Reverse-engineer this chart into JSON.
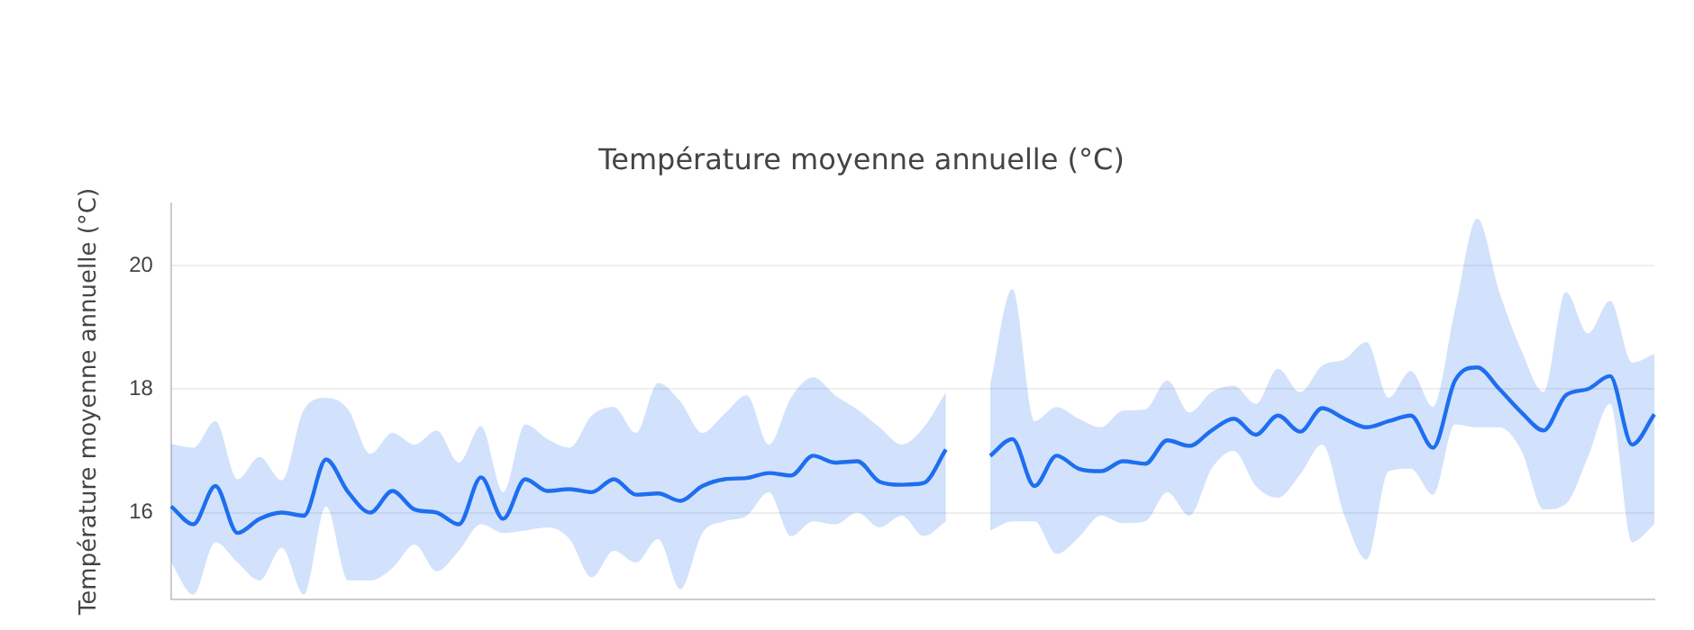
{
  "chart_data": {
    "type": "line",
    "title": "Température moyenne annuelle (°C)",
    "ylabel": "Température moyenne annuelle (°C)",
    "categories": [
      null,
      null,
      null,
      null,
      null,
      null,
      null,
      null,
      null,
      null,
      null,
      null,
      null,
      null,
      null,
      null,
      null,
      null,
      null,
      null,
      null,
      null,
      null,
      null,
      null,
      null,
      null,
      null,
      null,
      null,
      null,
      null,
      null,
      null,
      null,
      null,
      null,
      null,
      null,
      null,
      null,
      null,
      null,
      null,
      null,
      null,
      null,
      null,
      null,
      null,
      null,
      null,
      null,
      null,
      null,
      null,
      null,
      null,
      null,
      null,
      null,
      null,
      null,
      null,
      null,
      null,
      null,
      null
    ],
    "series": [
      {
        "color": "#1f6ff0",
        "values": [
          16.1,
          15.81,
          16.43,
          15.67,
          15.9,
          16.0,
          15.95,
          16.86,
          16.33,
          16.0,
          16.35,
          16.05,
          16.0,
          15.81,
          16.57,
          15.9,
          16.54,
          16.35,
          16.38,
          16.33,
          16.54,
          16.29,
          16.31,
          16.19,
          16.43,
          16.54,
          16.56,
          16.64,
          16.6,
          16.92,
          16.81,
          16.83,
          16.5,
          16.45,
          16.48,
          17.02,
          null,
          null,
          null,
          null,
          null,
          null,
          null,
          null,
          null,
          null,
          null,
          null,
          null,
          null,
          null,
          null,
          null,
          null,
          null,
          null,
          null,
          null,
          null,
          null,
          null,
          null,
          null,
          null,
          null,
          null,
          null,
          null
        ],
        "upper": [
          17.11,
          17.05,
          17.48,
          16.54,
          16.9,
          16.52,
          17.67,
          17.86,
          17.67,
          16.95,
          17.29,
          17.1,
          17.33,
          16.81,
          17.4,
          16.33,
          17.43,
          17.19,
          17.05,
          17.57,
          17.71,
          17.29,
          18.1,
          17.8,
          17.29,
          17.6,
          17.9,
          17.1,
          17.86,
          18.19,
          17.9,
          17.67,
          17.38,
          17.1,
          17.38,
          17.95,
          null,
          null,
          null,
          null,
          null,
          null,
          null,
          null,
          null,
          null,
          null,
          null,
          null,
          null,
          null,
          null,
          null,
          null,
          null,
          null,
          null,
          null,
          null,
          null,
          null,
          null,
          null,
          null,
          null,
          null,
          null,
          null
        ],
        "lower": [
          15.19,
          14.67,
          15.52,
          15.19,
          14.9,
          15.43,
          14.67,
          16.1,
          14.9,
          14.9,
          15.1,
          15.48,
          15.05,
          15.38,
          15.81,
          15.67,
          15.71,
          15.76,
          15.57,
          14.95,
          15.38,
          15.19,
          15.57,
          14.76,
          15.67,
          15.86,
          15.95,
          16.33,
          15.62,
          15.86,
          15.81,
          16.0,
          15.76,
          15.95,
          15.62,
          15.86,
          null,
          null,
          null,
          null,
          null,
          null,
          null,
          null,
          null,
          null,
          null,
          null,
          null,
          null,
          null,
          null,
          null,
          null,
          null,
          null,
          null,
          null,
          null,
          null,
          null,
          null,
          null,
          null,
          null,
          null,
          null,
          null
        ]
      },
      {
        "color": "#1f6ff0",
        "values": [
          null,
          null,
          null,
          null,
          null,
          null,
          null,
          null,
          null,
          null,
          null,
          null,
          null,
          null,
          null,
          null,
          null,
          null,
          null,
          null,
          null,
          null,
          null,
          null,
          null,
          null,
          null,
          null,
          null,
          null,
          null,
          null,
          null,
          null,
          null,
          null,
          null,
          16.92,
          17.19,
          16.43,
          16.92,
          16.71,
          16.67,
          16.83,
          16.79,
          17.17,
          17.08,
          17.33,
          17.52,
          17.26,
          17.57,
          17.31,
          17.69,
          17.52,
          17.38,
          17.48,
          17.57,
          17.05,
          18.14,
          18.35,
          18.0,
          17.62,
          17.33,
          17.9,
          18.0,
          18.21,
          17.1,
          17.59
        ],
        "upper": [
          null,
          null,
          null,
          null,
          null,
          null,
          null,
          null,
          null,
          null,
          null,
          null,
          null,
          null,
          null,
          null,
          null,
          null,
          null,
          null,
          null,
          null,
          null,
          null,
          null,
          null,
          null,
          null,
          null,
          null,
          null,
          null,
          null,
          null,
          null,
          null,
          null,
          18.05,
          19.62,
          17.48,
          17.71,
          17.52,
          17.38,
          17.65,
          17.67,
          18.14,
          17.62,
          17.95,
          18.05,
          17.76,
          18.33,
          17.95,
          18.38,
          18.48,
          18.76,
          17.86,
          18.29,
          17.71,
          19.29,
          20.76,
          19.57,
          18.62,
          17.95,
          19.57,
          18.9,
          19.43,
          18.43,
          18.57
        ],
        "lower": [
          null,
          null,
          null,
          null,
          null,
          null,
          null,
          null,
          null,
          null,
          null,
          null,
          null,
          null,
          null,
          null,
          null,
          null,
          null,
          null,
          null,
          null,
          null,
          null,
          null,
          null,
          null,
          null,
          null,
          null,
          null,
          null,
          null,
          null,
          null,
          null,
          null,
          15.71,
          15.86,
          15.86,
          15.33,
          15.6,
          15.95,
          15.83,
          15.86,
          16.33,
          15.95,
          16.71,
          17.0,
          16.43,
          16.24,
          16.62,
          17.1,
          15.95,
          15.24,
          16.67,
          16.71,
          16.29,
          17.43,
          17.38,
          17.38,
          17.0,
          16.05,
          16.14,
          16.9,
          17.76,
          15.52,
          15.81
        ]
      }
    ],
    "ylim": [
      14.6,
      21
    ],
    "yticks": [
      16,
      18,
      20
    ],
    "grid": "y",
    "tick_labels": "y"
  }
}
